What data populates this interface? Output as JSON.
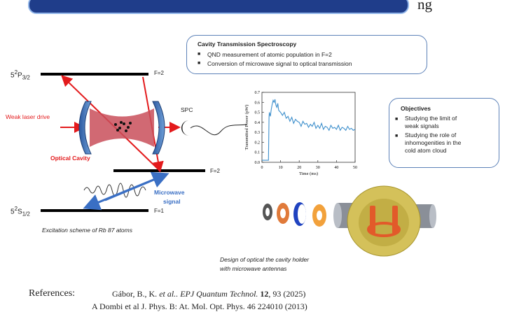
{
  "header": {
    "right_text": "ng"
  },
  "levels": {
    "p_state": {
      "n": "5",
      "sup": "2",
      "letter": "P",
      "sub": "3/2"
    },
    "s_state": {
      "n": "5",
      "sup": "2",
      "letter": "S",
      "sub": "1/2"
    },
    "f2_upper": "F=2",
    "f2_lower": "F=2",
    "f1": "F=1"
  },
  "labels": {
    "weak_laser": "Weak laser drive",
    "optical_cavity": "Optical Cavity",
    "spc": "SPC",
    "microwave_line1": "Microwave",
    "microwave_line2": "signal",
    "excitation_caption": "Excitation scheme of Rb 87 atoms",
    "holder_caption_line1": "Design of optical the cavity holder",
    "holder_caption_line2": "with microwave antennas"
  },
  "cavity_box": {
    "title": "Cavity Transmission Spectroscopy",
    "bullets": [
      "QND measurement of atomic population in F=2",
      "Conversion of microwave signal to optical transmission"
    ]
  },
  "objectives": {
    "title": "Objectives",
    "bullets": [
      [
        "Studying the limit of",
        "weak signals"
      ],
      [
        "Studying the role of",
        "inhomogenities in the",
        "cold atom cloud"
      ]
    ]
  },
  "references": {
    "label": "References:",
    "ref1": {
      "authors": "Gábor, B., K. ",
      "etal": "et al.",
      "journal": ". EPJ Quantum Technol.",
      "volume": "12",
      "rest": ", 93 (2025)"
    },
    "ref2": "A Dombi et al J. Phys. B: At. Mol. Opt. Phys. 46 224010 (2013)"
  },
  "chart_data": {
    "type": "line",
    "xlabel": "Time (ms)",
    "ylabel": "Transmitted Power (pW)",
    "xlim": [
      0,
      50
    ],
    "ylim": [
      0,
      0.7
    ],
    "xticks": [
      0,
      10,
      20,
      30,
      40,
      50
    ],
    "yticks": [
      0.0,
      0.1,
      0.2,
      0.3,
      0.4,
      0.5,
      0.6,
      0.7
    ],
    "series": [
      {
        "color": "#3d8fcc",
        "x": [
          0,
          1,
          2,
          3,
          3.5,
          3.8,
          4,
          4.5,
          5,
          5.5,
          6,
          6.5,
          7,
          7.5,
          8,
          8.5,
          9,
          10,
          11,
          12,
          13,
          14,
          15,
          16,
          17,
          18,
          19,
          20,
          21,
          22,
          23,
          24,
          25,
          26,
          27,
          28,
          29,
          30,
          31,
          32,
          33,
          34,
          35,
          36,
          37,
          38,
          39,
          40,
          41,
          42,
          43,
          44,
          45,
          46,
          47,
          48,
          49,
          50
        ],
        "y": [
          0.02,
          0.02,
          0.02,
          0.02,
          0.02,
          0.45,
          0.5,
          0.46,
          0.53,
          0.58,
          0.62,
          0.6,
          0.63,
          0.57,
          0.55,
          0.59,
          0.52,
          0.5,
          0.47,
          0.5,
          0.44,
          0.46,
          0.41,
          0.45,
          0.39,
          0.43,
          0.41,
          0.4,
          0.36,
          0.41,
          0.38,
          0.39,
          0.35,
          0.38,
          0.36,
          0.4,
          0.34,
          0.37,
          0.34,
          0.39,
          0.33,
          0.36,
          0.35,
          0.32,
          0.37,
          0.34,
          0.35,
          0.33,
          0.37,
          0.32,
          0.35,
          0.34,
          0.32,
          0.36,
          0.33,
          0.34,
          0.32,
          0.33
        ]
      }
    ]
  }
}
